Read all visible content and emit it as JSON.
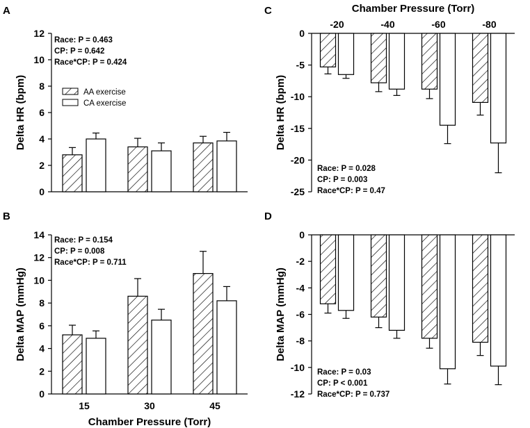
{
  "chart_data": [
    {
      "panel": "A",
      "type": "bar",
      "categories": [
        "15",
        "30",
        "45"
      ],
      "series": [
        {
          "name": "AA exercise",
          "values": [
            2.8,
            3.4,
            3.7
          ],
          "errors": [
            0.55,
            0.65,
            0.5
          ],
          "pattern": "hatch"
        },
        {
          "name": "CA exercise",
          "values": [
            4.0,
            3.1,
            3.85
          ],
          "errors": [
            0.45,
            0.6,
            0.65
          ],
          "pattern": "open"
        }
      ],
      "ylabel": "Delta HR (bpm)",
      "xlabel": "",
      "ylim": [
        0,
        12
      ],
      "yticks": [
        "0",
        "2",
        "4",
        "6",
        "8",
        "10",
        "12"
      ],
      "xticks_visible": false,
      "stats": [
        "Race:  P = 0.463",
        "CP:  P = 0.642",
        "Race*CP:  P = 0.424"
      ],
      "legend": [
        "AA exercise",
        "CA exercise"
      ]
    },
    {
      "panel": "B",
      "type": "bar",
      "categories": [
        "15",
        "30",
        "45"
      ],
      "series": [
        {
          "name": "AA exercise",
          "values": [
            5.2,
            8.6,
            10.6
          ],
          "errors": [
            0.85,
            1.55,
            1.95
          ],
          "pattern": "hatch"
        },
        {
          "name": "CA exercise",
          "values": [
            4.9,
            6.5,
            8.2
          ],
          "errors": [
            0.65,
            0.95,
            1.25
          ],
          "pattern": "open"
        }
      ],
      "ylabel": "Delta MAP (mmHg)",
      "xlabel": "Chamber Pressure (Torr)",
      "ylim": [
        0,
        14
      ],
      "yticks": [
        "0",
        "2",
        "4",
        "6",
        "8",
        "10",
        "12",
        "14"
      ],
      "xticks_visible": true,
      "stats": [
        "Race:  P = 0.154",
        "CP:  P = 0.008",
        "Race*CP:  P = 0.711"
      ]
    },
    {
      "panel": "C",
      "type": "bar",
      "categories": [
        "-20",
        "-40",
        "-60",
        "-80"
      ],
      "series": [
        {
          "name": "AA exercise",
          "values": [
            -5.3,
            -7.8,
            -8.8,
            -10.9
          ],
          "errors": [
            1.1,
            1.4,
            1.5,
            2.0
          ],
          "pattern": "hatch"
        },
        {
          "name": "CA exercise",
          "values": [
            -6.5,
            -8.8,
            -14.5,
            -17.3
          ],
          "errors": [
            0.6,
            1.0,
            2.9,
            4.7
          ],
          "pattern": "open"
        }
      ],
      "ylabel": "Delta HR (bpm)",
      "xlabel": "Chamber Pressure (Torr)",
      "ylim": [
        -25,
        0
      ],
      "yticks": [
        "0",
        "-5",
        "-10",
        "-15",
        "-20",
        "-25"
      ],
      "xticks_visible": true,
      "stats": [
        "Race:  P = 0.028",
        "CP:  P = 0.003",
        "Race*CP:  P = 0.47"
      ]
    },
    {
      "panel": "D",
      "type": "bar",
      "categories": [
        "-20",
        "-40",
        "-60",
        "-80"
      ],
      "series": [
        {
          "name": "AA exercise",
          "values": [
            -5.2,
            -6.2,
            -7.8,
            -8.1
          ],
          "errors": [
            0.7,
            0.8,
            0.75,
            1.0
          ],
          "pattern": "hatch"
        },
        {
          "name": "CA exercise",
          "values": [
            -5.7,
            -7.2,
            -10.1,
            -9.9
          ],
          "errors": [
            0.6,
            0.6,
            1.15,
            1.4
          ],
          "pattern": "open"
        }
      ],
      "ylabel": "Delta MAP (mmHg)",
      "xlabel": "",
      "ylim": [
        -12,
        0
      ],
      "yticks": [
        "0",
        "-2",
        "-4",
        "-6",
        "-8",
        "-10",
        "-12"
      ],
      "xticks_visible": false,
      "stats": [
        "Race:  P = 0.03",
        "CP:  P < 0.001",
        "Race*CP:  P = 0.737"
      ]
    }
  ]
}
